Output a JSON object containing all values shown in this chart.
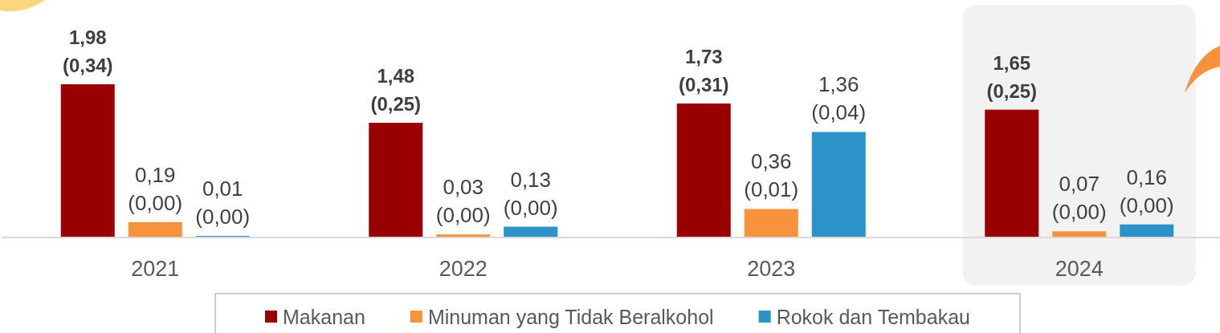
{
  "chart_data": {
    "type": "bar",
    "categories": [
      "2021",
      "2022",
      "2023",
      "2024"
    ],
    "series": [
      {
        "name": "Makanan",
        "color": "#990000",
        "values": [
          1.98,
          1.48,
          1.73,
          1.65
        ],
        "value_labels": [
          "1,98\n(0,34)",
          "1,48\n(0,25)",
          "1,73\n(0,31)",
          "1,65\n(0,25)"
        ]
      },
      {
        "name": "Minuman yang Tidak Beralkohol",
        "color": "#f7923a",
        "values": [
          0.19,
          0.03,
          0.36,
          0.07
        ],
        "value_labels": [
          "0,19\n(0,00)",
          "0,03\n(0,00)",
          "0,36\n(0,01)",
          "0,07\n(0,00)"
        ]
      },
      {
        "name": "Rokok dan Tembakau",
        "color": "#2a93c8",
        "values": [
          0.01,
          0.13,
          1.36,
          0.16
        ],
        "value_labels": [
          "0,01\n(0,00)",
          "0,13\n(0,00)",
          "1,36\n(0,04)",
          "0,16\n(0,00)"
        ]
      }
    ],
    "legend": "bottom",
    "bands": [
      {
        "axis": "x",
        "from": "2024",
        "to": "2024",
        "color": "#f2f2f2"
      }
    ]
  }
}
